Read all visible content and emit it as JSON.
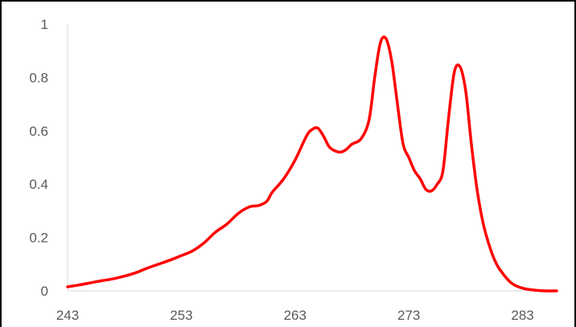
{
  "chart_data": {
    "type": "line",
    "title": "",
    "xlabel": "",
    "ylabel": "",
    "xlim": [
      243,
      286
    ],
    "ylim": [
      0,
      1
    ],
    "xticks": [
      "243",
      "253",
      "263",
      "273",
      "283"
    ],
    "yticks": [
      "0",
      "0.2",
      "0.4",
      "0.6",
      "0.8",
      "1"
    ],
    "grid": false,
    "legend": "none",
    "series": [
      {
        "color": "#ff0000",
        "x": [
          243,
          244,
          245,
          246,
          247,
          248,
          249,
          250,
          251,
          252,
          253,
          254,
          255,
          256,
          257,
          258,
          259,
          259.8,
          260.5,
          261,
          262,
          263,
          264,
          264.5,
          265,
          265.5,
          266,
          266.5,
          267,
          267.5,
          268,
          268.8,
          269.5,
          270,
          270.5,
          271,
          271.5,
          272,
          272.5,
          273,
          273.5,
          274,
          274.5,
          275,
          275.5,
          276,
          276.5,
          277,
          277.5,
          278,
          278.5,
          279,
          279.5,
          280,
          280.5,
          281,
          282,
          283,
          284,
          285,
          286
        ],
        "y": [
          0.015,
          0.022,
          0.03,
          0.038,
          0.045,
          0.055,
          0.068,
          0.085,
          0.1,
          0.115,
          0.132,
          0.15,
          0.18,
          0.22,
          0.25,
          0.29,
          0.315,
          0.32,
          0.335,
          0.37,
          0.42,
          0.49,
          0.58,
          0.605,
          0.61,
          0.58,
          0.54,
          0.525,
          0.52,
          0.53,
          0.55,
          0.57,
          0.64,
          0.8,
          0.93,
          0.945,
          0.86,
          0.7,
          0.55,
          0.5,
          0.45,
          0.42,
          0.38,
          0.375,
          0.4,
          0.45,
          0.65,
          0.82,
          0.84,
          0.75,
          0.55,
          0.38,
          0.26,
          0.18,
          0.12,
          0.08,
          0.03,
          0.01,
          0.003,
          0.0,
          0.0
        ]
      }
    ]
  }
}
